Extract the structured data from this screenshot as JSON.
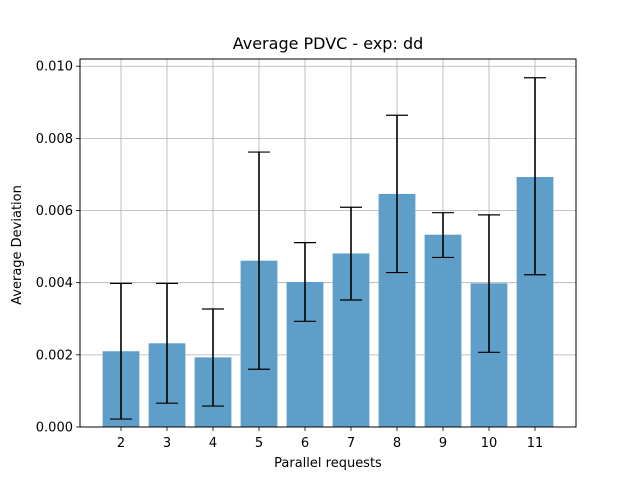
{
  "chart_data": {
    "type": "bar",
    "title": "Average PDVC - exp: dd",
    "xlabel": "Parallel requests",
    "ylabel": "Average Deviation",
    "categories": [
      "2",
      "3",
      "4",
      "5",
      "6",
      "7",
      "8",
      "9",
      "10",
      "11"
    ],
    "values": [
      0.0021,
      0.00232,
      0.00193,
      0.00461,
      0.00402,
      0.00481,
      0.00646,
      0.00533,
      0.00398,
      0.00693
    ],
    "error_low": [
      0.00022,
      0.00066,
      0.00058,
      0.0016,
      0.00293,
      0.00352,
      0.00428,
      0.0047,
      0.00207,
      0.00422
    ],
    "error_high": [
      0.00398,
      0.00398,
      0.00327,
      0.00762,
      0.00511,
      0.00609,
      0.00864,
      0.00594,
      0.00588,
      0.00968
    ],
    "ylim": [
      0,
      0.0102
    ],
    "yticks": [
      "0.000",
      "0.002",
      "0.004",
      "0.006",
      "0.008",
      "0.010"
    ],
    "ytick_values": [
      0,
      0.002,
      0.004,
      0.006,
      0.008,
      0.01
    ],
    "grid": true,
    "bar_color": "#5f9ec9",
    "error_color": "#000000"
  }
}
